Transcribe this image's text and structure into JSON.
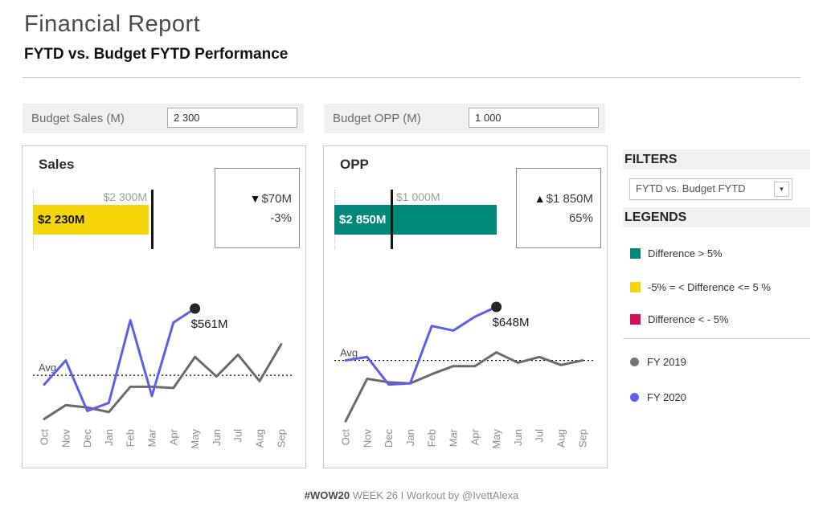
{
  "header": {
    "title": "Financial Report",
    "subtitle": "FYTD vs. Budget FYTD Performance"
  },
  "params": [
    {
      "label": "Budget Sales (M)",
      "value": "2 300"
    },
    {
      "label": "Budget OPP (M)",
      "value": "1 000"
    }
  ],
  "filters": {
    "heading": "FILTERS",
    "selected": "FYTD vs. Budget FYTD",
    "caret_icon": "▼"
  },
  "legends": {
    "heading": "LEGENDS",
    "diff_items": [
      {
        "label": "Difference > 5%",
        "color": "#00897B"
      },
      {
        "label": "-5% = < Difference <= 5 %",
        "color": "#F4D60B"
      },
      {
        "label": "Difference < - 5%",
        "color": "#CF1259"
      }
    ],
    "year_items": [
      {
        "label": "FY 2019",
        "color": "#757575"
      },
      {
        "label": "FY 2020",
        "color": "#6161EF"
      }
    ]
  },
  "panels": [
    {
      "title": "Sales",
      "bullet": {
        "value": 2230,
        "target": 2300,
        "value_label": "$2 230M",
        "target_label": "$2 300M",
        "bar_color": "#F4D60B",
        "text_color": "#1a1a1a"
      },
      "ban": {
        "arrow": "▼",
        "amount": "$70M",
        "percent": "-3%"
      }
    },
    {
      "title": "OPP",
      "bullet": {
        "value": 2850,
        "target": 1000,
        "value_label": "$2 850M",
        "target_label": "$1 000M",
        "bar_color": "#00897B",
        "text_color": "#ffffff"
      },
      "ban": {
        "arrow": "▲",
        "amount": "$1 850M",
        "percent": "65%"
      }
    }
  ],
  "chart_data": [
    {
      "type": "line",
      "title": "Sales monthly trend",
      "unit": "$M",
      "x": [
        "Oct",
        "Nov",
        "Dec",
        "Jan",
        "Feb",
        "Mar",
        "Apr",
        "May",
        "Jun",
        "Jul",
        "Aug",
        "Sep"
      ],
      "series": [
        {
          "name": "FY 2019",
          "color": "#6a6a6a",
          "values": [
            80,
            140,
            130,
            110,
            220,
            220,
            215,
            350,
            265,
            360,
            245,
            405
          ]
        },
        {
          "name": "FY 2020",
          "color": "#5E5EE8",
          "values": [
            230,
            335,
            115,
            150,
            510,
            180,
            500,
            561,
            null,
            null,
            null,
            null
          ]
        }
      ],
      "avg": 270,
      "avg_label": "Avg",
      "end_label": "$561M",
      "legend_position": "right-sidebar",
      "grid": false
    },
    {
      "type": "line",
      "title": "OPP monthly trend",
      "unit": "$M",
      "x": [
        "Oct",
        "Nov",
        "Dec",
        "Jan",
        "Feb",
        "Mar",
        "Apr",
        "May",
        "Jun",
        "Jul",
        "Aug",
        "Sep"
      ],
      "series": [
        {
          "name": "FY 2019",
          "color": "#6a6a6a",
          "values": [
            150,
            335,
            320,
            315,
            355,
            390,
            390,
            450,
            405,
            430,
            395,
            415
          ]
        },
        {
          "name": "FY 2020",
          "color": "#5E5EE8",
          "values": [
            415,
            430,
            310,
            315,
            565,
            545,
            605,
            648,
            null,
            null,
            null,
            null
          ]
        }
      ],
      "avg": 415,
      "avg_label": "Avg",
      "end_label": "$648M",
      "legend_position": "right-sidebar",
      "grid": false
    }
  ],
  "footer": {
    "tag": "#WOW20",
    "rest": "WEEK 26 I Workout by @IvettAlexa"
  }
}
